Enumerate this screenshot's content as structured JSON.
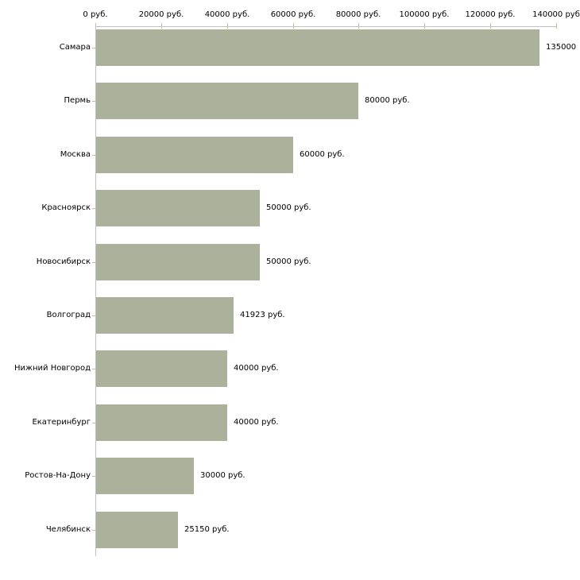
{
  "chart_data": {
    "type": "bar",
    "orientation": "horizontal",
    "title": "",
    "xlabel": "",
    "ylabel": "",
    "xlim": [
      0,
      140000
    ],
    "grid": false,
    "legend": null,
    "categories": [
      "Самара",
      "Пермь",
      "Москва",
      "Красноярск",
      "Новосибирск",
      "Волгоград",
      "Нижний Новгород",
      "Екатеринбург",
      "Ростов-На-Дону",
      "Челябинск"
    ],
    "values": [
      135000,
      80000,
      60000,
      50000,
      50000,
      41923,
      40000,
      40000,
      30000,
      25150
    ],
    "value_labels": [
      "135000",
      "80000 руб.",
      "60000 руб.",
      "50000 руб.",
      "50000 руб.",
      "41923 руб.",
      "40000 руб.",
      "40000 руб.",
      "30000 руб.",
      "25150 руб."
    ],
    "x_ticks": [
      {
        "value": 0,
        "label": "0 руб."
      },
      {
        "value": 20000,
        "label": "20000 руб."
      },
      {
        "value": 40000,
        "label": "40000 руб."
      },
      {
        "value": 60000,
        "label": "60000 руб."
      },
      {
        "value": 80000,
        "label": "80000 руб."
      },
      {
        "value": 100000,
        "label": "100000 руб."
      },
      {
        "value": 120000,
        "label": "120000 руб."
      },
      {
        "value": 140000,
        "label": "140000 руб"
      }
    ],
    "colors": {
      "bar_fill": "#abb19b",
      "axis_line": "#c0c0c0",
      "tick_mark": "#c9bd93",
      "text": "#000000"
    }
  }
}
